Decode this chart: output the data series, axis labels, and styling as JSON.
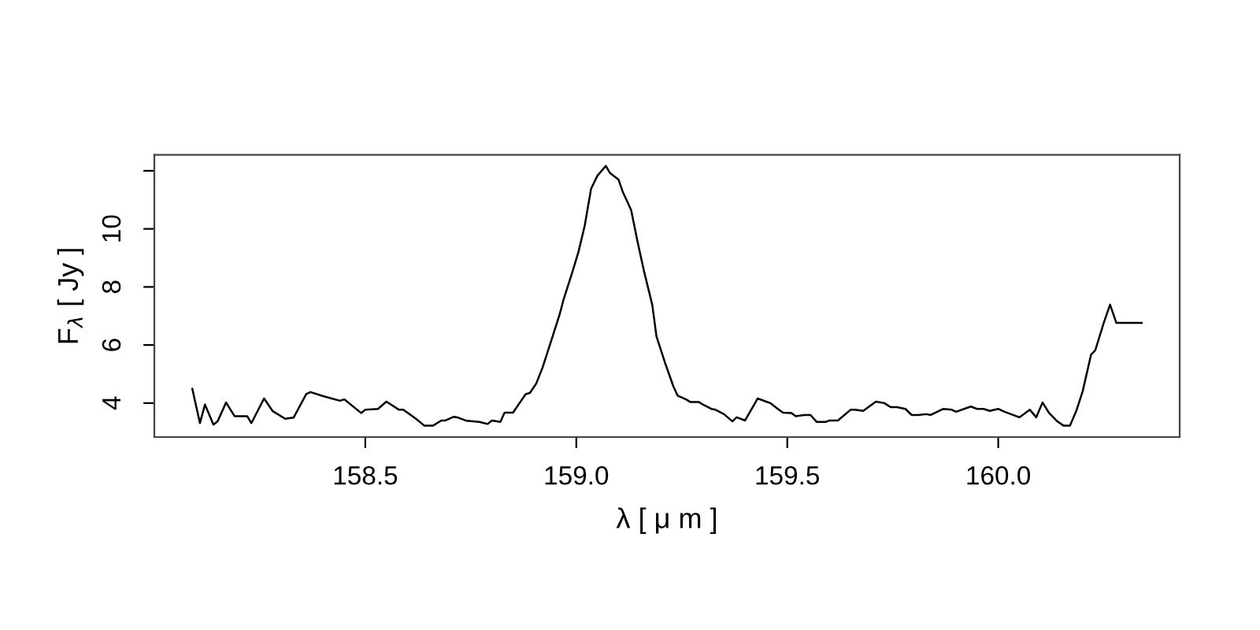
{
  "chart_data": {
    "type": "line",
    "xlabel": "λ [ μ m ]",
    "ylabel": "F$_{λ}$ [ Jy ]",
    "xlim": [
      158.0,
      160.43
    ],
    "ylim": [
      2.83,
      12.55
    ],
    "xticks": [
      158.5,
      {
        "value": 159.0,
        "label": "159.0"
      },
      159.5,
      {
        "value": 160.0,
        "label": "160.0"
      }
    ],
    "yticks": [
      4,
      6,
      8,
      10,
      {
        "value": 12,
        "label": null
      }
    ],
    "grid": false,
    "marker": "none",
    "line_style": "solid",
    "series": [
      {
        "color": "#000000",
        "x": [
          158.09,
          158.108,
          158.12,
          158.14,
          158.15,
          158.17,
          158.19,
          158.22,
          158.23,
          158.26,
          158.28,
          158.31,
          158.33,
          158.36,
          158.37,
          158.4,
          158.44,
          158.45,
          158.49,
          158.5,
          158.53,
          158.55,
          158.58,
          158.59,
          158.62,
          158.64,
          158.66,
          158.68,
          158.69,
          158.71,
          158.72,
          158.74,
          158.77,
          158.79,
          158.8,
          158.82,
          158.83,
          158.85,
          158.88,
          158.89,
          158.905,
          158.92,
          158.94,
          158.96,
          158.97,
          158.99,
          159.005,
          159.02,
          159.035,
          159.05,
          159.07,
          159.08,
          159.1,
          159.11,
          159.13,
          159.145,
          159.16,
          159.18,
          159.19,
          159.21,
          159.23,
          159.24,
          159.26,
          159.27,
          159.29,
          159.3,
          159.32,
          159.33,
          159.35,
          159.37,
          159.38,
          159.4,
          159.43,
          159.45,
          159.46,
          159.48,
          159.49,
          159.51,
          159.52,
          159.54,
          159.555,
          159.57,
          159.59,
          159.6,
          159.62,
          159.65,
          159.66,
          159.68,
          159.71,
          159.73,
          159.745,
          159.76,
          159.78,
          159.795,
          159.81,
          159.83,
          159.84,
          159.87,
          159.89,
          159.9,
          159.935,
          159.95,
          159.965,
          159.98,
          160.0,
          160.015,
          160.05,
          160.075,
          160.09,
          160.105,
          160.12,
          160.14,
          160.155,
          160.17,
          160.185,
          160.2,
          160.22,
          160.23,
          160.25,
          160.265,
          160.28,
          160.34
        ],
        "values": [
          4.49,
          3.31,
          3.95,
          3.26,
          3.37,
          4.02,
          3.55,
          3.55,
          3.31,
          4.16,
          3.73,
          3.46,
          3.5,
          4.31,
          4.38,
          4.24,
          4.08,
          4.13,
          3.66,
          3.77,
          3.8,
          4.05,
          3.77,
          3.77,
          3.46,
          3.22,
          3.22,
          3.4,
          3.4,
          3.53,
          3.5,
          3.39,
          3.35,
          3.28,
          3.4,
          3.35,
          3.67,
          3.67,
          4.31,
          4.35,
          4.67,
          5.22,
          6.12,
          7.03,
          7.57,
          8.48,
          9.2,
          10.11,
          11.38,
          11.83,
          12.17,
          11.92,
          11.7,
          11.28,
          10.65,
          9.57,
          8.57,
          7.39,
          6.3,
          5.4,
          4.58,
          4.26,
          4.13,
          4.04,
          4.04,
          3.95,
          3.8,
          3.77,
          3.62,
          3.37,
          3.51,
          3.4,
          4.16,
          4.05,
          4.0,
          3.77,
          3.67,
          3.66,
          3.55,
          3.59,
          3.59,
          3.35,
          3.35,
          3.4,
          3.4,
          3.77,
          3.77,
          3.73,
          4.05,
          4.0,
          3.86,
          3.86,
          3.8,
          3.59,
          3.59,
          3.62,
          3.59,
          3.8,
          3.77,
          3.7,
          3.88,
          3.8,
          3.8,
          3.73,
          3.8,
          3.7,
          3.51,
          3.77,
          3.51,
          4.02,
          3.67,
          3.37,
          3.22,
          3.22,
          3.73,
          4.4,
          5.67,
          5.82,
          6.76,
          7.39,
          6.76,
          6.76
        ]
      }
    ]
  }
}
